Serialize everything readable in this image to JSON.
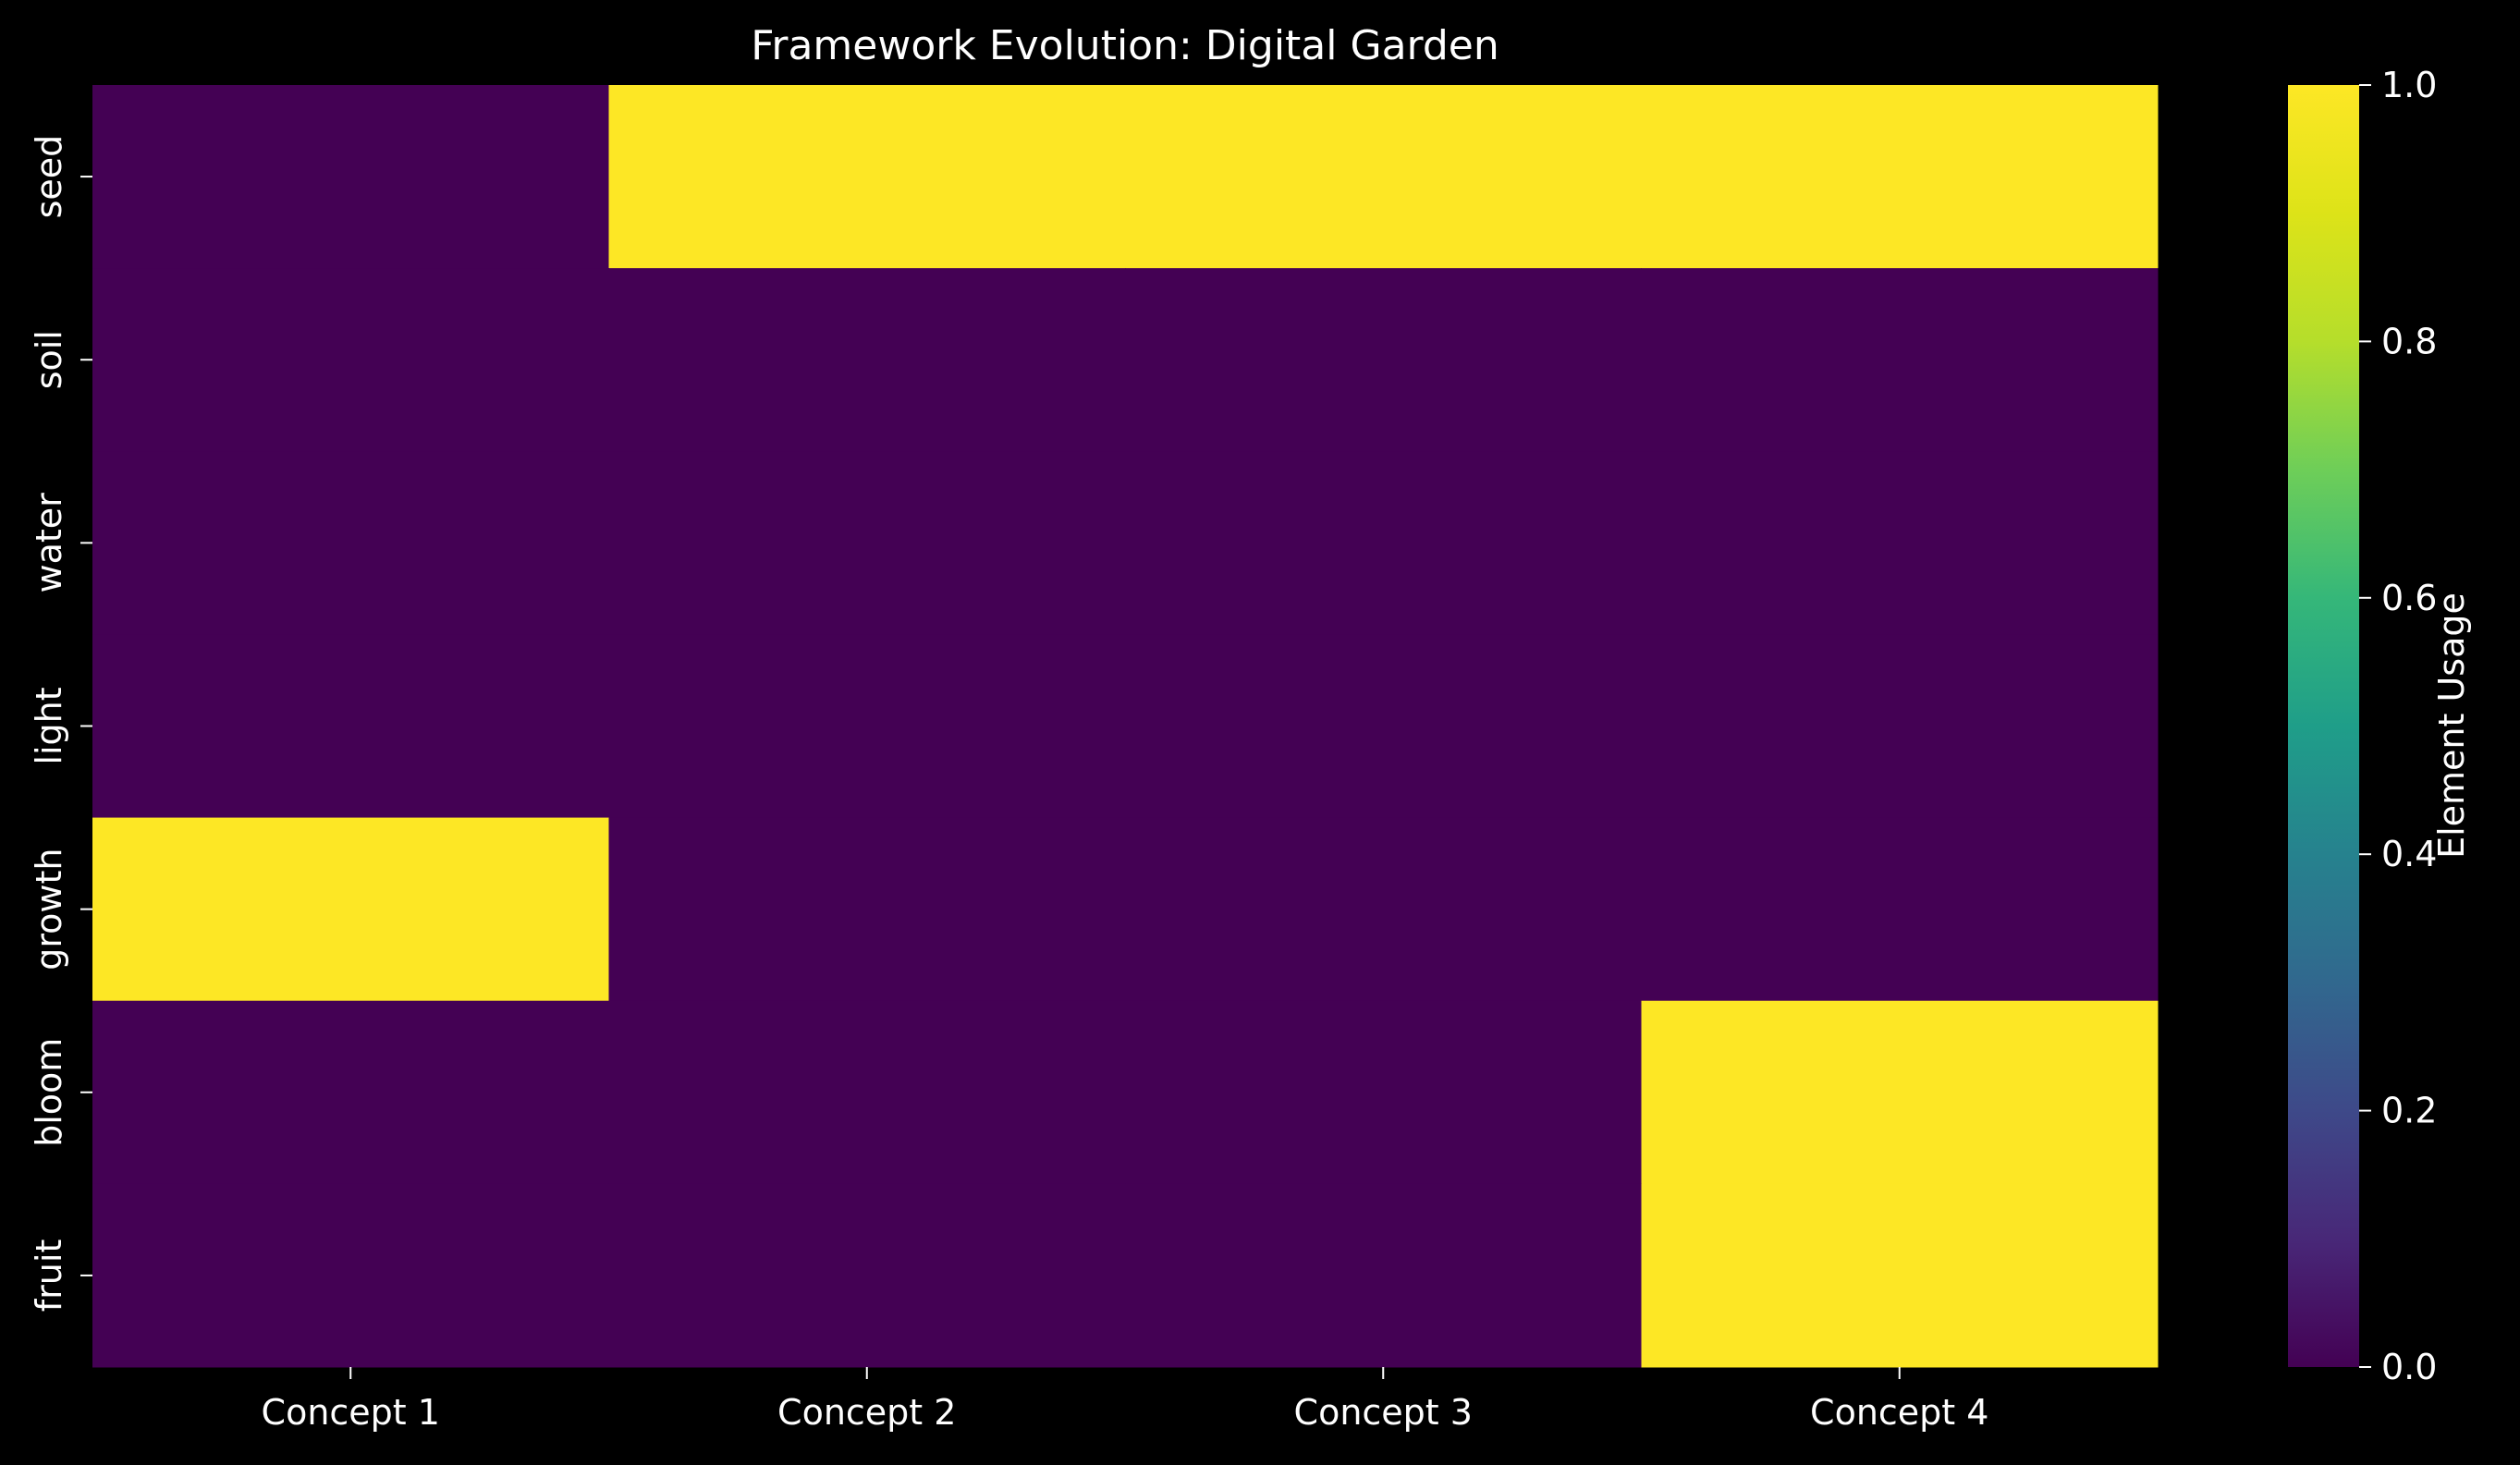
{
  "chart_data": {
    "type": "heatmap",
    "title": "Framework Evolution: Digital Garden",
    "xlabel": "",
    "ylabel": "",
    "x_categories": [
      "Concept 1",
      "Concept 2",
      "Concept 3",
      "Concept 4"
    ],
    "y_categories": [
      "seed",
      "soil",
      "water",
      "light",
      "growth",
      "bloom",
      "fruit"
    ],
    "values": [
      [
        0,
        1,
        1,
        1
      ],
      [
        0,
        0,
        0,
        0
      ],
      [
        0,
        0,
        0,
        0
      ],
      [
        0,
        0,
        0,
        0
      ],
      [
        1,
        0,
        0,
        0
      ],
      [
        0,
        0,
        0,
        1
      ],
      [
        0,
        0,
        0,
        1
      ]
    ],
    "colorbar": {
      "label": "Element Usage",
      "range": [
        0.0,
        1.0
      ],
      "ticks": [
        "0.0",
        "0.2",
        "0.4",
        "0.6",
        "0.8",
        "1.0"
      ],
      "colormap": "viridis"
    },
    "colors": {
      "low": "#440154",
      "high": "#fde725",
      "background": "#000000",
      "text": "#ffffff"
    }
  }
}
